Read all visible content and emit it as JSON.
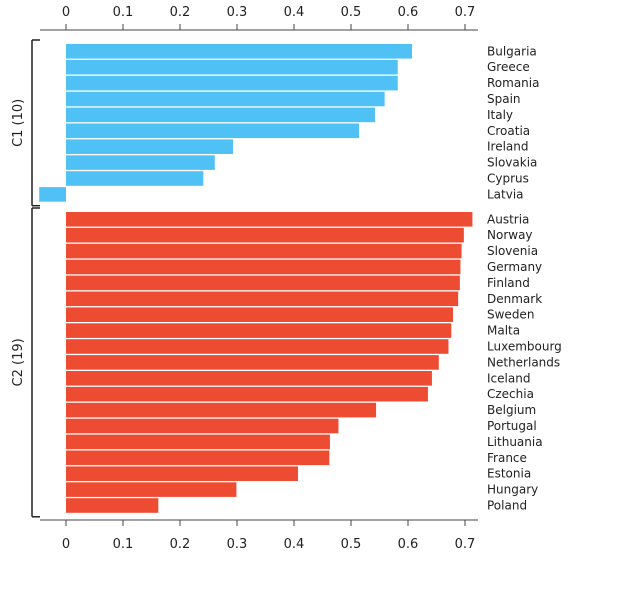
{
  "chart_data": {
    "type": "bar",
    "orientation": "horizontal",
    "title": "",
    "xlabel": "",
    "ylabel": "",
    "xlim": [
      -0.047,
      0.72
    ],
    "x_ticks": [
      0,
      0.1,
      0.2,
      0.3,
      0.4,
      0.5,
      0.6,
      0.7
    ],
    "x_tick_labels": [
      "0",
      "0.1",
      "0.2",
      "0.3",
      "0.4",
      "0.5",
      "0.6",
      "0.7"
    ],
    "grid": false,
    "legend": "none",
    "colors": {
      "C1": "#4fc1f5",
      "C2": "#ee4b33"
    },
    "groups": [
      {
        "id": "C1",
        "label": "C1 (10)",
        "color": "#4fc1f5",
        "categories": [
          "Bulgaria",
          "Greece",
          "Romania",
          "Spain",
          "Italy",
          "Croatia",
          "Ireland",
          "Slovakia",
          "Cyprus",
          "Latvia"
        ],
        "values": [
          0.607,
          0.582,
          0.582,
          0.559,
          0.542,
          0.514,
          0.293,
          0.261,
          0.241,
          -0.047
        ]
      },
      {
        "id": "C2",
        "label": "C2 (19)",
        "color": "#ee4b33",
        "categories": [
          "Austria",
          "Norway",
          "Slovenia",
          "Germany",
          "Finland",
          "Denmark",
          "Sweden",
          "Malta",
          "Luxembourg",
          "Netherlands",
          "Iceland",
          "Czechia",
          "Belgium",
          "Portugal",
          "Lithuania",
          "France",
          "Estonia",
          "Hungary",
          "Poland"
        ],
        "values": [
          0.713,
          0.698,
          0.694,
          0.692,
          0.691,
          0.688,
          0.679,
          0.676,
          0.671,
          0.654,
          0.642,
          0.635,
          0.544,
          0.478,
          0.463,
          0.462,
          0.407,
          0.299,
          0.162
        ]
      }
    ]
  }
}
